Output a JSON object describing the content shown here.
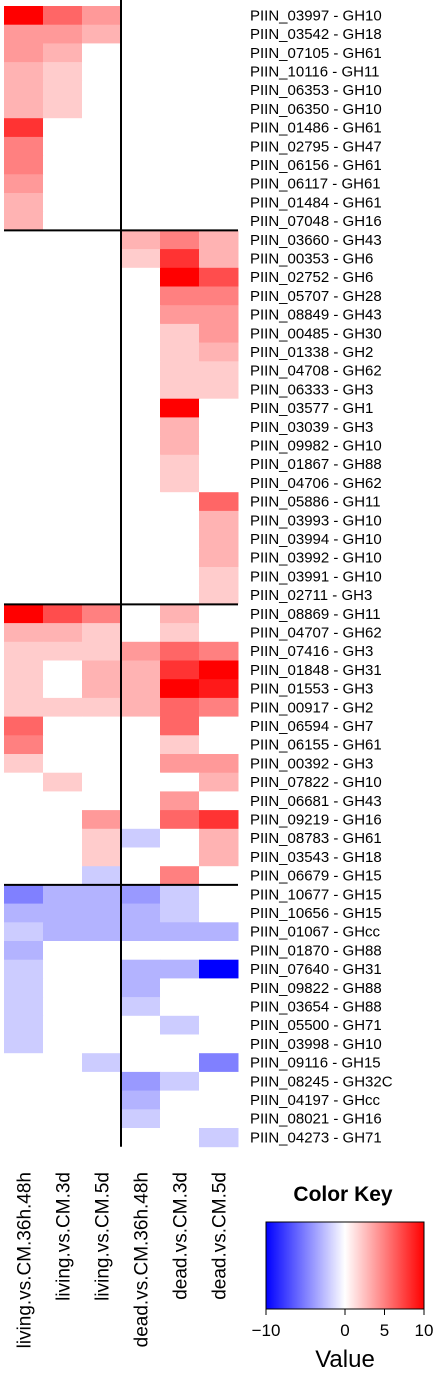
{
  "chart_data": {
    "type": "heatmap",
    "columns": [
      "living.vs.CM.36h.48h",
      "living.vs.CM.3d",
      "living.vs.CM.5d",
      "dead.vs.CM.36h.48h",
      "dead.vs.CM.3d",
      "dead.vs.CM.5d"
    ],
    "rows": [
      "PIIN_03997 - GH10",
      "PIIN_03542 - GH18",
      "PIIN_07105 - GH61",
      "PIIN_10116 - GH11",
      "PIIN_06353 - GH10",
      "PIIN_06350 - GH10",
      "PIIN_01486 - GH61",
      "PIIN_02795 - GH47",
      "PIIN_06156 - GH61",
      "PIIN_06117 - GH61",
      "PIIN_01484 - GH61",
      "PIIN_07048 - GH16",
      "PIIN_03660 - GH43",
      "PIIN_00353 - GH6",
      "PIIN_02752 - GH6",
      "PIIN_05707 - GH28",
      "PIIN_08849 - GH43",
      "PIIN_00485 - GH30",
      "PIIN_01338 - GH2",
      "PIIN_04708 - GH62",
      "PIIN_06333 - GH3",
      "PIIN_03577 - GH1",
      "PIIN_03039 - GH3",
      "PIIN_09982 - GH10",
      "PIIN_01867 - GH88",
      "PIIN_04706 - GH62",
      "PIIN_05886 - GH11",
      "PIIN_03993 - GH10",
      "PIIN_03994 - GH10",
      "PIIN_03992 - GH10",
      "PIIN_03991 - GH10",
      "PIIN_02711 - GH3",
      "PIIN_08869 - GH11",
      "PIIN_04707 - GH62",
      "PIIN_07416 - GH3",
      "PIIN_01848 - GH31",
      "PIIN_01553 - GH3",
      "PIIN_00917 - GH2",
      "PIIN_06594 - GH7",
      "PIIN_06155 - GH61",
      "PIIN_00392 - GH3",
      "PIIN_07822 - GH10",
      "PIIN_06681 - GH43",
      "PIIN_09219 - GH16",
      "PIIN_08783 - GH61",
      "PIIN_03543 - GH18",
      "PIIN_06679 - GH15",
      "PIIN_10677 - GH15",
      "PIIN_10656 - GH15",
      "PIIN_01067 - GHcc",
      "PIIN_01870 - GH88",
      "PIIN_07640 - GH31",
      "PIIN_09822 - GH88",
      "PIIN_03654 - GH88",
      "PIIN_05500 - GH71",
      "PIIN_03998 - GH10",
      "PIIN_09116 - GH15",
      "PIIN_08245 - GH32C",
      "PIIN_04197 - GHcc",
      "PIIN_08021 - GH16",
      "PIIN_04273 - GH71"
    ],
    "values": [
      [
        10,
        6,
        4,
        0,
        0,
        0
      ],
      [
        4,
        4,
        3,
        0,
        0,
        0
      ],
      [
        4,
        3,
        0,
        0,
        0,
        0
      ],
      [
        3,
        2,
        0,
        0,
        0,
        0
      ],
      [
        3,
        2,
        0,
        0,
        0,
        0
      ],
      [
        3,
        2,
        0,
        0,
        0,
        0
      ],
      [
        8,
        0,
        0,
        0,
        0,
        0
      ],
      [
        5,
        0,
        0,
        0,
        0,
        0
      ],
      [
        5,
        0,
        0,
        0,
        0,
        0
      ],
      [
        4,
        0,
        0,
        0,
        0,
        0
      ],
      [
        3,
        0,
        0,
        0,
        0,
        0
      ],
      [
        3,
        0,
        0,
        0,
        0,
        0
      ],
      [
        0,
        0,
        0,
        3,
        5,
        3
      ],
      [
        0,
        0,
        0,
        2,
        8,
        3
      ],
      [
        0,
        0,
        0,
        0,
        10,
        7
      ],
      [
        0,
        0,
        0,
        0,
        5,
        5
      ],
      [
        0,
        0,
        0,
        0,
        4,
        4
      ],
      [
        0,
        0,
        0,
        0,
        2,
        4
      ],
      [
        0,
        0,
        0,
        0,
        2,
        3
      ],
      [
        0,
        0,
        0,
        0,
        2,
        2
      ],
      [
        0,
        0,
        0,
        0,
        2,
        2
      ],
      [
        0,
        0,
        0,
        0,
        10,
        0
      ],
      [
        0,
        0,
        0,
        0,
        3,
        0
      ],
      [
        0,
        0,
        0,
        0,
        3,
        0
      ],
      [
        0,
        0,
        0,
        0,
        2,
        0
      ],
      [
        0,
        0,
        0,
        0,
        2,
        0
      ],
      [
        0,
        0,
        0,
        0,
        0,
        6
      ],
      [
        0,
        0,
        0,
        0,
        0,
        3
      ],
      [
        0,
        0,
        0,
        0,
        0,
        3
      ],
      [
        0,
        0,
        0,
        0,
        0,
        3
      ],
      [
        0,
        0,
        0,
        0,
        0,
        2
      ],
      [
        0,
        0,
        0,
        0,
        0,
        2
      ],
      [
        10,
        7,
        5,
        0,
        3,
        0
      ],
      [
        3,
        3,
        2,
        0,
        2,
        0
      ],
      [
        2,
        2,
        2,
        4,
        6,
        5
      ],
      [
        2,
        0,
        3,
        3,
        8,
        10
      ],
      [
        2,
        0,
        3,
        3,
        10,
        9
      ],
      [
        2,
        2,
        2,
        3,
        6,
        5
      ],
      [
        6,
        0,
        0,
        0,
        6,
        0
      ],
      [
        5,
        0,
        0,
        0,
        2,
        0
      ],
      [
        2,
        0,
        0,
        0,
        4,
        4
      ],
      [
        0,
        2,
        0,
        0,
        0,
        3
      ],
      [
        0,
        0,
        0,
        0,
        4,
        0
      ],
      [
        0,
        0,
        4,
        0,
        6,
        8
      ],
      [
        0,
        0,
        2,
        -2,
        0,
        3
      ],
      [
        0,
        0,
        2,
        0,
        0,
        3
      ],
      [
        0,
        0,
        -2,
        0,
        5,
        0
      ],
      [
        -5,
        -3,
        -3,
        -4,
        -2,
        0
      ],
      [
        -3,
        -3,
        -3,
        -3,
        -2,
        0
      ],
      [
        -2,
        -3,
        -3,
        -3,
        -3,
        -3
      ],
      [
        -3,
        0,
        0,
        0,
        0,
        0
      ],
      [
        -2,
        0,
        0,
        -3,
        -3,
        -10
      ],
      [
        -2,
        0,
        0,
        -3,
        0,
        0
      ],
      [
        -2,
        0,
        0,
        -2,
        0,
        0
      ],
      [
        -2,
        0,
        0,
        0,
        -2,
        0
      ],
      [
        -2,
        0,
        0,
        0,
        0,
        0
      ],
      [
        0,
        0,
        -2,
        0,
        0,
        -5
      ],
      [
        0,
        0,
        0,
        -4,
        -2,
        0
      ],
      [
        0,
        0,
        0,
        -3,
        0,
        0
      ],
      [
        0,
        0,
        0,
        -2,
        0,
        0
      ],
      [
        0,
        0,
        0,
        0,
        0,
        -2
      ]
    ],
    "row_separators_after": [
      11,
      31,
      46
    ],
    "column_separator_after": 2,
    "color_scale": {
      "low": "#0000ff",
      "mid": "#ffffff",
      "high": "#ff0000",
      "range": [
        -10,
        10
      ]
    },
    "color_key": {
      "title": "Color Key",
      "xlabel": "Value",
      "ticks": [
        -10,
        0,
        5,
        10
      ],
      "tick_labels": [
        "−10",
        "0",
        "5",
        "10"
      ]
    }
  }
}
